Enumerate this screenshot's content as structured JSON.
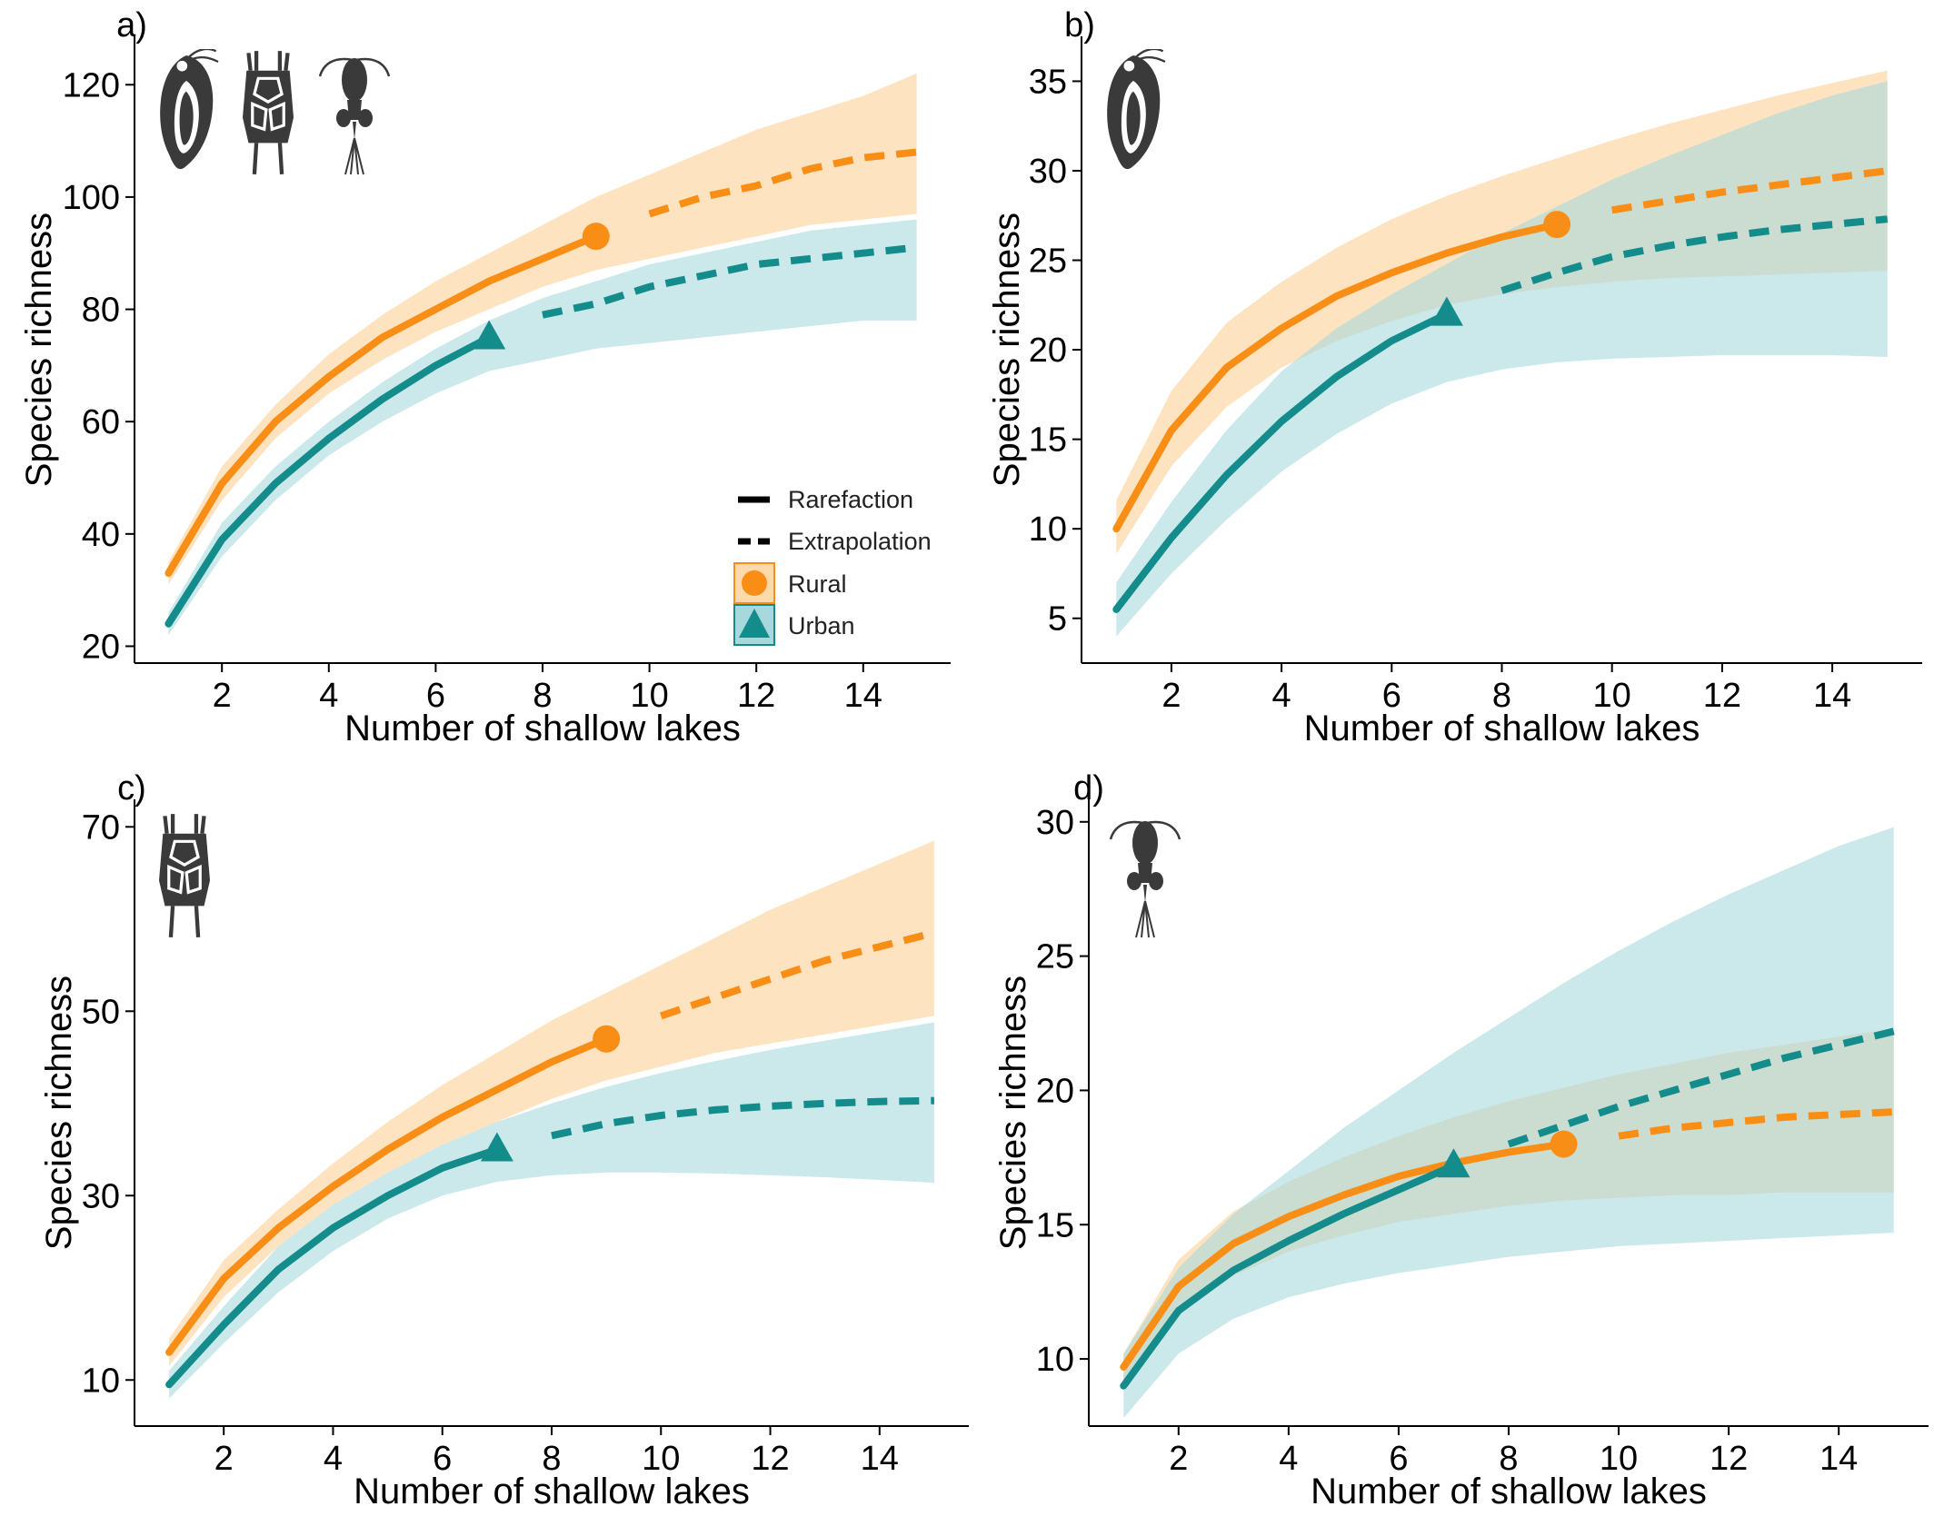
{
  "colors": {
    "rural": "#F98E16",
    "urban": "#148C8C",
    "rural_band": "#FDD9AC",
    "urban_band": "#A8D8DC",
    "icon": "#3a3a3a"
  },
  "legend": {
    "rarefaction": "Rarefaction",
    "extrapolation": "Extrapolation",
    "rural": "Rural",
    "urban": "Urban"
  },
  "chart_data": [
    {
      "type": "line",
      "panel_label": "a)",
      "xlabel": "Number of shallow lakes",
      "ylabel": "Species richness",
      "xlim": [
        0.5,
        15.5
      ],
      "ylim": [
        17,
        127
      ],
      "xticks": [
        2,
        4,
        6,
        8,
        10,
        12,
        14
      ],
      "yticks": [
        20,
        40,
        60,
        80,
        100,
        120
      ],
      "icons": [
        "cladoceran-icon",
        "rotifer-icon",
        "copepod-icon"
      ],
      "show_legend": true,
      "series": [
        {
          "name": "Rural",
          "observed_point": [
            9,
            93
          ],
          "rarefaction": {
            "x": [
              1,
              2,
              3,
              4,
              5,
              6,
              7,
              8,
              9
            ],
            "y": [
              33,
              49,
              60,
              68,
              75,
              80,
              85,
              89,
              93
            ]
          },
          "extrapolation": {
            "x": [
              10,
              11,
              12,
              13,
              14,
              15
            ],
            "y": [
              97,
              100,
              102,
              105,
              107,
              108
            ]
          },
          "band": {
            "x": [
              1,
              2,
              3,
              4,
              5,
              6,
              7,
              8,
              9,
              10,
              11,
              12,
              13,
              14,
              15
            ],
            "lower": [
              31,
              46,
              57,
              65,
              71,
              76,
              80,
              84,
              87,
              89,
              91,
              93,
              95,
              96,
              97
            ],
            "upper": [
              35,
              52,
              63,
              72,
              79,
              85,
              90,
              95,
              100,
              104,
              108,
              112,
              115,
              118,
              122
            ]
          }
        },
        {
          "name": "Urban",
          "observed_point": [
            7,
            75
          ],
          "rarefaction": {
            "x": [
              1,
              2,
              3,
              4,
              5,
              6,
              7
            ],
            "y": [
              24,
              39,
              49,
              57,
              64,
              70,
              75
            ]
          },
          "extrapolation": {
            "x": [
              8,
              9,
              10,
              11,
              12,
              13,
              14,
              15
            ],
            "y": [
              79,
              81,
              84,
              86,
              88,
              89,
              90,
              91
            ]
          },
          "band": {
            "x": [
              1,
              2,
              3,
              4,
              5,
              6,
              7,
              8,
              9,
              10,
              11,
              12,
              13,
              14,
              15
            ],
            "lower": [
              22,
              36,
              46,
              54,
              60,
              65,
              69,
              71,
              73,
              74,
              75,
              76,
              77,
              78,
              78
            ],
            "upper": [
              26,
              42,
              52,
              60,
              67,
              73,
              78,
              82,
              85,
              88,
              90,
              92,
              94,
              95,
              96
            ]
          }
        }
      ]
    },
    {
      "type": "line",
      "panel_label": "b)",
      "xlabel": "Number of shallow lakes",
      "ylabel": "Species richness",
      "xlim": [
        0.5,
        15.5
      ],
      "ylim": [
        2.5,
        37
      ],
      "xticks": [
        2,
        4,
        6,
        8,
        10,
        12,
        14
      ],
      "yticks": [
        5,
        10,
        15,
        20,
        25,
        30,
        35
      ],
      "icons": [
        "cladoceran-icon"
      ],
      "show_legend": false,
      "series": [
        {
          "name": "Rural",
          "observed_point": [
            9,
            27
          ],
          "rarefaction": {
            "x": [
              1,
              2,
              3,
              4,
              5,
              6,
              7,
              8,
              9
            ],
            "y": [
              10,
              15.5,
              19,
              21.2,
              23,
              24.3,
              25.4,
              26.3,
              27
            ]
          },
          "extrapolation": {
            "x": [
              10,
              11,
              12,
              13,
              14,
              15
            ],
            "y": [
              27.8,
              28.3,
              28.8,
              29.2,
              29.6,
              30
            ]
          },
          "band": {
            "x": [
              1,
              2,
              3,
              4,
              5,
              6,
              7,
              8,
              9,
              10,
              11,
              12,
              13,
              14,
              15
            ],
            "lower": [
              8.6,
              13.5,
              16.8,
              19,
              20.5,
              21.6,
              22.5,
              23.1,
              23.5,
              23.8,
              24,
              24.1,
              24.2,
              24.3,
              24.4
            ],
            "upper": [
              11.6,
              17.7,
              21.5,
              23.8,
              25.7,
              27.3,
              28.6,
              29.7,
              30.7,
              31.7,
              32.6,
              33.4,
              34.2,
              34.9,
              35.6
            ]
          }
        },
        {
          "name": "Urban",
          "observed_point": [
            7,
            22
          ],
          "rarefaction": {
            "x": [
              1,
              2,
              3,
              4,
              5,
              6,
              7
            ],
            "y": [
              5.5,
              9.5,
              13,
              16,
              18.5,
              20.5,
              22
            ]
          },
          "extrapolation": {
            "x": [
              8,
              9,
              10,
              11,
              12,
              13,
              14,
              15
            ],
            "y": [
              23.3,
              24.3,
              25.2,
              25.8,
              26.3,
              26.7,
              27,
              27.3
            ]
          },
          "band": {
            "x": [
              1,
              2,
              3,
              4,
              5,
              6,
              7,
              8,
              9,
              10,
              11,
              12,
              13,
              14,
              15
            ],
            "lower": [
              4,
              7.5,
              10.5,
              13.2,
              15.3,
              17,
              18.2,
              18.9,
              19.3,
              19.5,
              19.6,
              19.7,
              19.7,
              19.7,
              19.6
            ],
            "upper": [
              7,
              11.5,
              15.5,
              18.8,
              21.2,
              23.1,
              24.8,
              26.5,
              28,
              29.5,
              30.8,
              32,
              33.2,
              34.2,
              35
            ]
          }
        }
      ]
    },
    {
      "type": "line",
      "panel_label": "c)",
      "xlabel": "Number of shallow lakes",
      "ylabel": "Species richness",
      "xlim": [
        0.5,
        15.5
      ],
      "ylim": [
        5,
        72
      ],
      "xticks": [
        2,
        4,
        6,
        8,
        10,
        12,
        14
      ],
      "yticks": [
        10,
        30,
        50,
        70
      ],
      "icons": [
        "rotifer-icon"
      ],
      "show_legend": false,
      "series": [
        {
          "name": "Rural",
          "observed_point": [
            9,
            47
          ],
          "rarefaction": {
            "x": [
              1,
              2,
              3,
              4,
              5,
              6,
              7,
              8,
              9
            ],
            "y": [
              13,
              21,
              26.5,
              31,
              35,
              38.5,
              41.5,
              44.5,
              47
            ]
          },
          "extrapolation": {
            "x": [
              10,
              11,
              12,
              13,
              14,
              15
            ],
            "y": [
              49.5,
              51.5,
              53.5,
              55.5,
              57,
              58.5
            ]
          },
          "band": {
            "x": [
              1,
              2,
              3,
              4,
              5,
              6,
              7,
              8,
              9,
              10,
              11,
              12,
              13,
              14,
              15
            ],
            "lower": [
              11.5,
              19,
              24.5,
              29,
              32.5,
              35.5,
              38,
              40.5,
              42.5,
              44,
              45.5,
              46.5,
              47.5,
              48.5,
              49.5
            ],
            "upper": [
              14.5,
              23,
              28.5,
              33.5,
              38,
              42,
              45.5,
              49,
              52,
              55,
              58,
              61,
              63.5,
              66,
              68.5
            ]
          }
        },
        {
          "name": "Urban",
          "observed_point": [
            7,
            35
          ],
          "rarefaction": {
            "x": [
              1,
              2,
              3,
              4,
              5,
              6,
              7
            ],
            "y": [
              9.5,
              16,
              22,
              26.5,
              30,
              33,
              35
            ]
          },
          "extrapolation": {
            "x": [
              8,
              9,
              10,
              11,
              12,
              13,
              14,
              15
            ],
            "y": [
              36.5,
              37.8,
              38.7,
              39.3,
              39.7,
              40,
              40.2,
              40.3
            ]
          },
          "band": {
            "x": [
              1,
              2,
              3,
              4,
              5,
              6,
              7,
              8,
              9,
              10,
              11,
              12,
              13,
              14,
              15
            ],
            "lower": [
              8,
              14,
              19.5,
              24,
              27.5,
              30,
              31.5,
              32.2,
              32.5,
              32.5,
              32.4,
              32.2,
              32,
              31.7,
              31.4
            ],
            "upper": [
              11,
              18,
              24.5,
              29,
              32.5,
              35.5,
              38,
              40,
              41.8,
              43.3,
              44.6,
              45.8,
              46.8,
              47.8,
              48.8
            ]
          }
        }
      ]
    },
    {
      "type": "line",
      "panel_label": "d)",
      "xlabel": "Number of shallow lakes",
      "ylabel": "Species richness",
      "xlim": [
        0.5,
        15.5
      ],
      "ylim": [
        7.5,
        30.5
      ],
      "xticks": [
        2,
        4,
        6,
        8,
        10,
        12,
        14
      ],
      "yticks": [
        10,
        15,
        20,
        25,
        30
      ],
      "icons": [
        "copepod-icon"
      ],
      "show_legend": false,
      "series": [
        {
          "name": "Rural",
          "observed_point": [
            9,
            18
          ],
          "rarefaction": {
            "x": [
              1,
              2,
              3,
              4,
              5,
              6,
              7,
              8,
              9
            ],
            "y": [
              9.7,
              12.7,
              14.3,
              15.3,
              16.1,
              16.8,
              17.3,
              17.7,
              18
            ]
          },
          "extrapolation": {
            "x": [
              10,
              11,
              12,
              13,
              14,
              15
            ],
            "y": [
              18.3,
              18.6,
              18.8,
              19,
              19.1,
              19.2
            ]
          },
          "band": {
            "x": [
              1,
              2,
              3,
              4,
              5,
              6,
              7,
              8,
              9,
              10,
              11,
              12,
              13,
              14,
              15
            ],
            "lower": [
              9.2,
              11.7,
              13.1,
              14,
              14.6,
              15.1,
              15.4,
              15.7,
              15.9,
              16,
              16.1,
              16.1,
              16.2,
              16.2,
              16.2
            ],
            "upper": [
              10.2,
              13.7,
              15.5,
              16.6,
              17.5,
              18.3,
              19,
              19.6,
              20.1,
              20.6,
              21,
              21.4,
              21.7,
              22,
              22.3
            ]
          }
        },
        {
          "name": "Urban",
          "observed_point": [
            7,
            17.2
          ],
          "rarefaction": {
            "x": [
              1,
              2,
              3,
              4,
              5,
              6,
              7
            ],
            "y": [
              9,
              11.8,
              13.3,
              14.4,
              15.4,
              16.3,
              17.2
            ]
          },
          "extrapolation": {
            "x": [
              8,
              9,
              10,
              11,
              12,
              13,
              14,
              15
            ],
            "y": [
              18,
              18.7,
              19.4,
              20,
              20.6,
              21.2,
              21.7,
              22.2
            ]
          },
          "band": {
            "x": [
              1,
              2,
              3,
              4,
              5,
              6,
              7,
              8,
              9,
              10,
              11,
              12,
              13,
              14,
              15
            ],
            "lower": [
              7.8,
              10.2,
              11.5,
              12.3,
              12.8,
              13.2,
              13.5,
              13.8,
              14,
              14.2,
              14.3,
              14.4,
              14.5,
              14.6,
              14.7
            ],
            "upper": [
              10.2,
              13.4,
              15.4,
              17,
              18.6,
              20,
              21.4,
              22.7,
              24,
              25.2,
              26.3,
              27.3,
              28.2,
              29.1,
              29.8
            ]
          }
        }
      ]
    }
  ]
}
